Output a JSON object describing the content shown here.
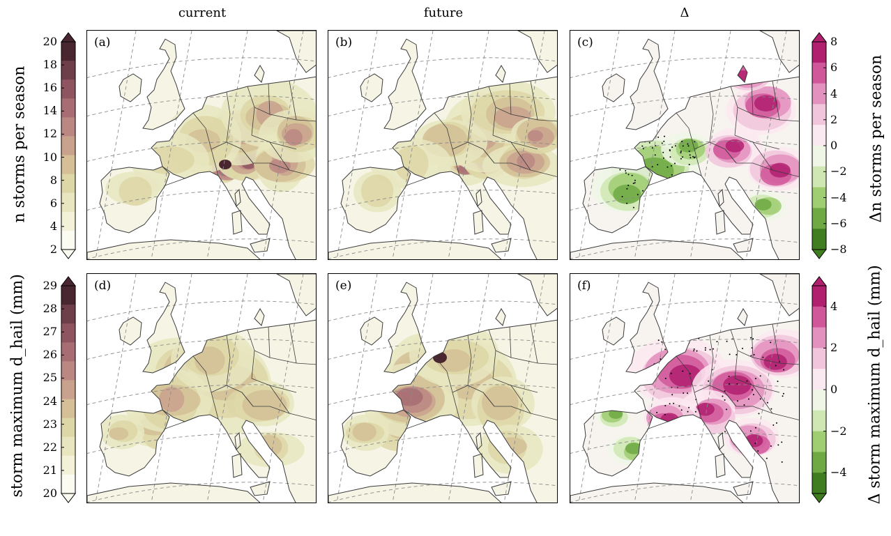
{
  "column_titles": [
    "current",
    "future",
    "Δ"
  ],
  "panel_labels": [
    "(a)",
    "(b)",
    "(c)",
    "(d)",
    "(e)",
    "(f)"
  ],
  "rows": [
    {
      "left_colorbar": {
        "label": "n storms per season",
        "ticks": [
          "20",
          "18",
          "16",
          "14",
          "12",
          "10",
          "8",
          "6",
          "4",
          "2"
        ],
        "colors": [
          "#fbfbf2",
          "#f3f1d8",
          "#e8e6bf",
          "#ddd6a6",
          "#d4bf96",
          "#c9a28d",
          "#bb8782",
          "#a86d72",
          "#8e5560",
          "#6e3e4a",
          "#4a2730"
        ]
      },
      "right_colorbar": {
        "label": "Δn storms per season",
        "ticks": [
          "8",
          "6",
          "4",
          "2",
          "0",
          "−2",
          "−4",
          "−6",
          "−8"
        ],
        "colors": [
          "#b0206f",
          "#d0589a",
          "#e391be",
          "#f1c6dc",
          "#fbe9f1",
          "#eff6e6",
          "#cfe8b3",
          "#9fcd72",
          "#6fa943",
          "#3f7d20"
        ]
      }
    },
    {
      "left_colorbar": {
        "label": "storm maximum d_hail (mm)",
        "ticks": [
          "29",
          "28",
          "27",
          "26",
          "25",
          "24",
          "23",
          "22",
          "21",
          "20"
        ],
        "colors": [
          "#fbfbf2",
          "#f3f1d8",
          "#e8e6bf",
          "#ddd6a6",
          "#d4bf96",
          "#c9a28d",
          "#bb8782",
          "#a86d72",
          "#8e5560",
          "#6e3e4a",
          "#4a2730"
        ]
      },
      "right_colorbar": {
        "label": "Δ storm maximum d_hail (mm)",
        "ticks": [
          "4",
          "2",
          "0",
          "−2",
          "−4"
        ],
        "colors": [
          "#b0206f",
          "#d0589a",
          "#e391be",
          "#f1c6dc",
          "#fbe9f1",
          "#eff6e6",
          "#cfe8b3",
          "#9fcd72",
          "#6fa943",
          "#3f7d20"
        ]
      }
    }
  ],
  "colors": {
    "coastline": "#3a3a3a",
    "grid": "#8a8a8a"
  }
}
